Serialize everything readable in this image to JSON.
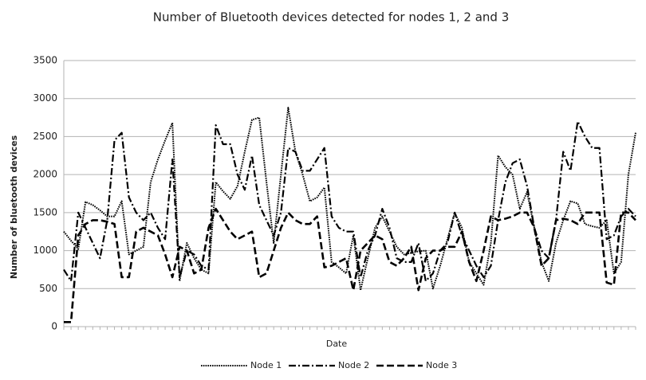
{
  "chart_data": {
    "type": "line",
    "title": "Number of Bluetooth devices detected for nodes 1, 2 and 3",
    "x_label": "Date",
    "y_label": "Number of bluetooth devices",
    "categories": [
      null,
      null,
      null,
      null,
      null,
      null,
      null,
      null,
      null,
      null,
      null,
      null,
      null,
      null,
      null,
      null,
      null,
      null,
      null,
      null,
      null,
      null,
      null,
      null,
      null,
      null,
      null,
      null,
      null,
      null,
      null,
      null,
      null,
      null,
      null,
      null,
      null,
      null,
      null,
      null,
      null,
      null,
      null,
      null,
      null,
      null,
      null,
      null,
      null,
      null,
      null,
      null,
      null,
      null,
      null,
      null,
      null,
      null,
      null,
      null,
      null,
      null,
      null,
      null,
      null,
      null,
      null,
      null,
      null,
      null,
      null,
      null,
      null,
      null,
      null,
      null,
      null,
      null,
      null,
      null
    ],
    "series": [
      {
        "name": "Node 1",
        "color": "#000000",
        "style": "dotted",
        "values": [
          1250,
          1130,
          1020,
          1640,
          1600,
          1530,
          1450,
          1450,
          1650,
          950,
          1000,
          1050,
          1900,
          2200,
          2450,
          2680,
          600,
          1100,
          900,
          750,
          700,
          1900,
          1780,
          1680,
          1850,
          2300,
          2720,
          2750,
          1900,
          1100,
          2000,
          2880,
          2300,
          2000,
          1650,
          1700,
          1830,
          850,
          780,
          700,
          1200,
          480,
          900,
          1300,
          1450,
          1250,
          1050,
          950,
          970,
          990,
          1000,
          500,
          800,
          1150,
          1500,
          1300,
          850,
          700,
          550,
          1100,
          2250,
          2100,
          2000,
          1550,
          1770,
          1300,
          850,
          600,
          1100,
          1400,
          1650,
          1620,
          1350,
          1320,
          1300,
          1400,
          700,
          850,
          2000,
          2550
        ]
      },
      {
        "name": "Node 2",
        "color": "#000000",
        "style": "dashdot",
        "values": [
          750,
          600,
          1500,
          1300,
          1100,
          900,
          1400,
          2450,
          2550,
          1700,
          1500,
          1400,
          1500,
          1300,
          1150,
          2200,
          650,
          1000,
          950,
          800,
          750,
          2650,
          2400,
          2400,
          2000,
          1800,
          2250,
          1600,
          1400,
          1200,
          1500,
          2350,
          2300,
          2050,
          2050,
          2200,
          2350,
          1450,
          1300,
          1250,
          1250,
          650,
          1000,
          1200,
          1550,
          1300,
          900,
          850,
          850,
          1100,
          600,
          700,
          1000,
          1100,
          1500,
          1200,
          1000,
          800,
          650,
          800,
          1400,
          1900,
          2150,
          2200,
          1850,
          1300,
          1000,
          900,
          1400,
          2300,
          2050,
          2700,
          2500,
          2350,
          2350,
          1150,
          1200,
          1450,
          1550,
          1450
        ]
      },
      {
        "name": "Node 3",
        "color": "#000000",
        "style": "dashed",
        "values": [
          60,
          60,
          1200,
          1350,
          1400,
          1400,
          1380,
          1350,
          650,
          650,
          1250,
          1300,
          1250,
          1200,
          950,
          650,
          1050,
          1000,
          700,
          750,
          1300,
          1550,
          1400,
          1250,
          1150,
          1200,
          1250,
          650,
          700,
          1000,
          1300,
          1500,
          1400,
          1350,
          1350,
          1450,
          780,
          800,
          850,
          900,
          480,
          1000,
          1100,
          1200,
          1150,
          850,
          800,
          900,
          1050,
          480,
          900,
          1000,
          1000,
          1050,
          1050,
          1250,
          850,
          600,
          1000,
          1450,
          1400,
          1420,
          1450,
          1500,
          1500,
          1300,
          800,
          900,
          1400,
          1420,
          1400,
          1350,
          1500,
          1500,
          1500,
          580,
          550,
          1500,
          1500,
          1400
        ]
      }
    ],
    "ylim": [
      0,
      3500
    ],
    "yticks": [
      0,
      500,
      1000,
      1500,
      2000,
      2500,
      3000,
      3500
    ],
    "grid": true,
    "legend": "bottom"
  }
}
